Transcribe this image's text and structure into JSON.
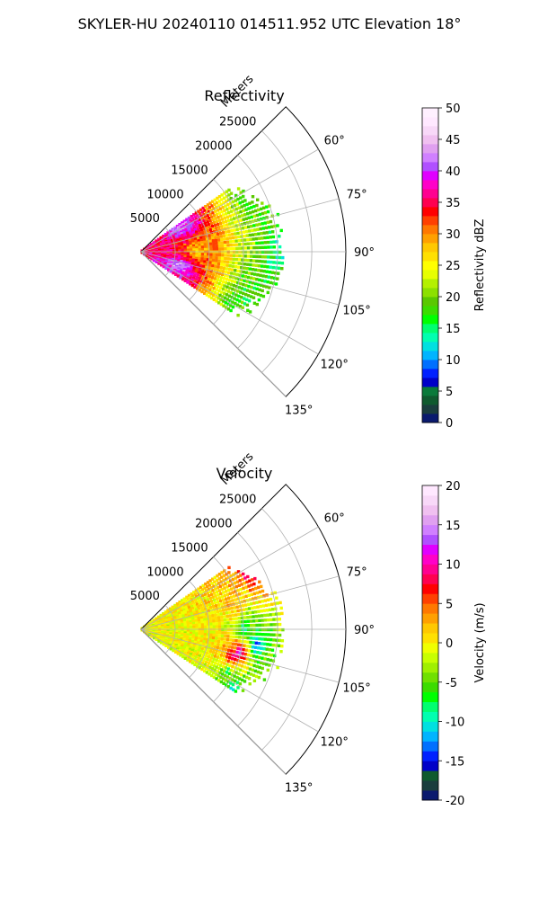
{
  "figure": {
    "title": "SKYLER-HU  20240110  014511.952 UTC Elevation 18°"
  },
  "chart_data": [
    {
      "type": "heatmap",
      "projection": "polar-sector",
      "title": "Reflectivity",
      "range_axis_label": "Meters",
      "range_ticks": [
        "5000",
        "10000",
        "15000",
        "20000",
        "25000"
      ],
      "range_tick_values": [
        5000,
        10000,
        15000,
        20000,
        25000
      ],
      "range_max": 30000,
      "azimuth_ticks": [
        "60°",
        "75°",
        "90°",
        "105°",
        "120°",
        "135°"
      ],
      "azimuth_tick_values": [
        60,
        75,
        90,
        105,
        120,
        135
      ],
      "azimuth_range": [
        45,
        135
      ],
      "grid": true,
      "colorbar": {
        "label": "Reflectivity dBZ",
        "min": 0,
        "max": 50,
        "ticks": [
          "0",
          "5",
          "10",
          "15",
          "20",
          "25",
          "30",
          "35",
          "40",
          "45",
          "50"
        ]
      },
      "field_description_points": [
        {
          "azimuth_deg": 90,
          "range_m": 20000,
          "value": 15
        },
        {
          "azimuth_deg": 90,
          "range_m": 8000,
          "value": 27
        },
        {
          "azimuth_deg": 90,
          "range_m": 5000,
          "value": 35
        },
        {
          "azimuth_deg": 60,
          "range_m": 7000,
          "value": 42
        },
        {
          "azimuth_deg": 110,
          "range_m": 6000,
          "value": 44
        },
        {
          "azimuth_deg": 65,
          "range_m": 18000,
          "value": 18
        },
        {
          "azimuth_deg": 115,
          "range_m": 16000,
          "value": 17
        }
      ],
      "echo_extent_m": 21000,
      "echo_azimuth_range": [
        55,
        125
      ]
    },
    {
      "type": "heatmap",
      "projection": "polar-sector",
      "title": "Velocity",
      "range_axis_label": "Meters",
      "range_ticks": [
        "5000",
        "10000",
        "15000",
        "20000",
        "25000"
      ],
      "range_tick_values": [
        5000,
        10000,
        15000,
        20000,
        25000
      ],
      "range_max": 30000,
      "azimuth_ticks": [
        "60°",
        "75°",
        "90°",
        "105°",
        "120°",
        "135°"
      ],
      "azimuth_tick_values": [
        60,
        75,
        90,
        105,
        120,
        135
      ],
      "azimuth_range": [
        45,
        135
      ],
      "grid": true,
      "colorbar": {
        "label": "Velocity (m/s)",
        "min": -20,
        "max": 20,
        "ticks": [
          "-20",
          "-15",
          "-10",
          "-5",
          "0",
          "5",
          "10",
          "15",
          "20"
        ]
      },
      "field_description_points": [
        {
          "azimuth_deg": 62,
          "range_m": 18000,
          "value": 9
        },
        {
          "azimuth_deg": 75,
          "range_m": 14000,
          "value": 3
        },
        {
          "azimuth_deg": 90,
          "range_m": 15000,
          "value": -10
        },
        {
          "azimuth_deg": 98,
          "range_m": 17000,
          "value": -14
        },
        {
          "azimuth_deg": 103,
          "range_m": 15000,
          "value": 15
        },
        {
          "azimuth_deg": 108,
          "range_m": 14000,
          "value": 9
        },
        {
          "azimuth_deg": 115,
          "range_m": 14000,
          "value": -8
        },
        {
          "azimuth_deg": 122,
          "range_m": 16000,
          "value": -10
        }
      ],
      "echo_extent_m": 21000,
      "echo_azimuth_range": [
        55,
        125
      ]
    }
  ]
}
